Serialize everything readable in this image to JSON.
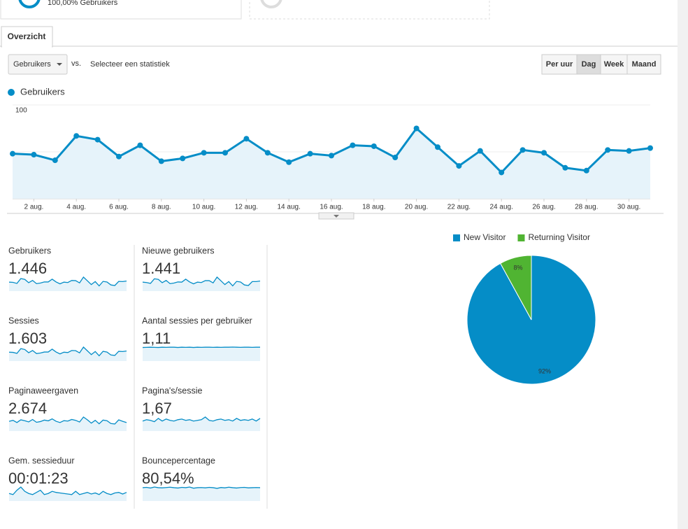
{
  "top_cards": {
    "segment_label": "100,00% Gebruikers"
  },
  "tabs": [
    "Overzicht"
  ],
  "controls": {
    "metric": "Gebruikers",
    "vs": "vs.",
    "compare": "Selecteer een statistiek",
    "intervals": [
      "Per uur",
      "Dag",
      "Week",
      "Maand"
    ],
    "active_interval": 1
  },
  "chart_data": [
    {
      "type": "line",
      "fill": true,
      "categories": [
        null,
        "2 aug.",
        null,
        "4 aug.",
        null,
        "6 aug.",
        null,
        "8 aug.",
        null,
        "10 aug.",
        null,
        "12 aug.",
        null,
        "14 aug.",
        null,
        "16 aug.",
        null,
        "18 aug.",
        null,
        "20 aug.",
        null,
        "22 aug.",
        null,
        "24 aug.",
        null,
        "26 aug.",
        null,
        "28 aug.",
        null,
        "30 aug.",
        null
      ],
      "series": [
        {
          "name": "Gebruikers",
          "color": "#058dc7",
          "values": [
            48,
            47,
            41,
            67,
            63,
            45,
            57,
            40,
            43,
            49,
            49,
            64,
            49,
            39,
            48,
            46,
            57,
            56,
            44,
            75,
            55,
            35,
            51,
            28,
            52,
            49,
            33,
            30,
            52,
            51,
            54
          ]
        }
      ],
      "ylim": [
        0,
        100
      ],
      "yticks": [
        50,
        100
      ],
      "grid": true
    },
    {
      "type": "pie",
      "categories": [
        "New Visitor",
        "Returning Visitor"
      ],
      "values": [
        92,
        8
      ],
      "value_labels": [
        "92%",
        "8%"
      ],
      "colors": [
        "#058dc7",
        "#50b432"
      ]
    }
  ],
  "metrics": [
    {
      "label": "Gebruikers",
      "value": "1.446",
      "spark": [
        48,
        47,
        41,
        67,
        63,
        45,
        57,
        40,
        43,
        49,
        49,
        64,
        49,
        39,
        48,
        46,
        57,
        56,
        44,
        75,
        55,
        35,
        51,
        28,
        52,
        49,
        33,
        30,
        52,
        51,
        54
      ]
    },
    {
      "label": "Nieuwe gebruikers",
      "value": "1.441",
      "spark": [
        48,
        46,
        41,
        66,
        63,
        45,
        57,
        40,
        43,
        49,
        48,
        64,
        49,
        39,
        48,
        46,
        56,
        56,
        44,
        75,
        55,
        35,
        51,
        28,
        52,
        49,
        33,
        30,
        51,
        51,
        54
      ]
    },
    {
      "label": "Sessies",
      "value": "1.603",
      "spark": [
        52,
        51,
        45,
        73,
        68,
        49,
        62,
        44,
        47,
        53,
        53,
        70,
        53,
        42,
        52,
        50,
        62,
        61,
        48,
        82,
        60,
        38,
        56,
        31,
        57,
        53,
        36,
        33,
        57,
        56,
        59
      ]
    },
    {
      "label": "Aantal sessies per gebruiker",
      "value": "1,11",
      "spark": [
        1.08,
        1.09,
        1.1,
        1.09,
        1.08,
        1.1,
        1.09,
        1.1,
        1.1,
        1.08,
        1.1,
        1.09,
        1.1,
        1.08,
        1.1,
        1.09,
        1.1,
        1.1,
        1.09,
        1.1,
        1.09,
        1.1,
        1.1,
        1.11,
        1.1,
        1.09,
        1.1,
        1.1,
        1.09,
        1.1,
        1.1
      ]
    },
    {
      "label": "Paginaweergaven",
      "value": "2.674",
      "spark": [
        80,
        88,
        70,
        92,
        85,
        75,
        95,
        72,
        78,
        90,
        84,
        100,
        80,
        70,
        85,
        82,
        95,
        88,
        74,
        115,
        92,
        65,
        88,
        60,
        90,
        85,
        62,
        58,
        92,
        80,
        70
      ]
    },
    {
      "label": "Pagina's/sessie",
      "value": "1,67",
      "spark": [
        1.5,
        1.7,
        1.6,
        1.4,
        1.9,
        1.5,
        1.8,
        1.6,
        1.5,
        1.7,
        1.8,
        1.6,
        1.7,
        1.5,
        1.6,
        1.7,
        2.1,
        1.6,
        1.5,
        1.7,
        1.8,
        1.6,
        1.7,
        1.5,
        1.9,
        1.6,
        1.7,
        1.6,
        1.8,
        1.5,
        1.9
      ]
    },
    {
      "label": "Gem. sessieduur",
      "value": "00:01:23",
      "spark": [
        70,
        60,
        100,
        130,
        90,
        70,
        60,
        80,
        100,
        60,
        70,
        90,
        80,
        75,
        70,
        65,
        60,
        90,
        60,
        70,
        80,
        65,
        75,
        60,
        90,
        70,
        60,
        75,
        80,
        65,
        80
      ]
    },
    {
      "label": "Bouncepercentage",
      "value": "80,54%",
      "spark": [
        80,
        82,
        78,
        84,
        80,
        79,
        81,
        83,
        80,
        78,
        82,
        80,
        84,
        77,
        80,
        81,
        79,
        82,
        80,
        76,
        81,
        79,
        83,
        80,
        78,
        81,
        82,
        79,
        80,
        81,
        80
      ]
    }
  ]
}
